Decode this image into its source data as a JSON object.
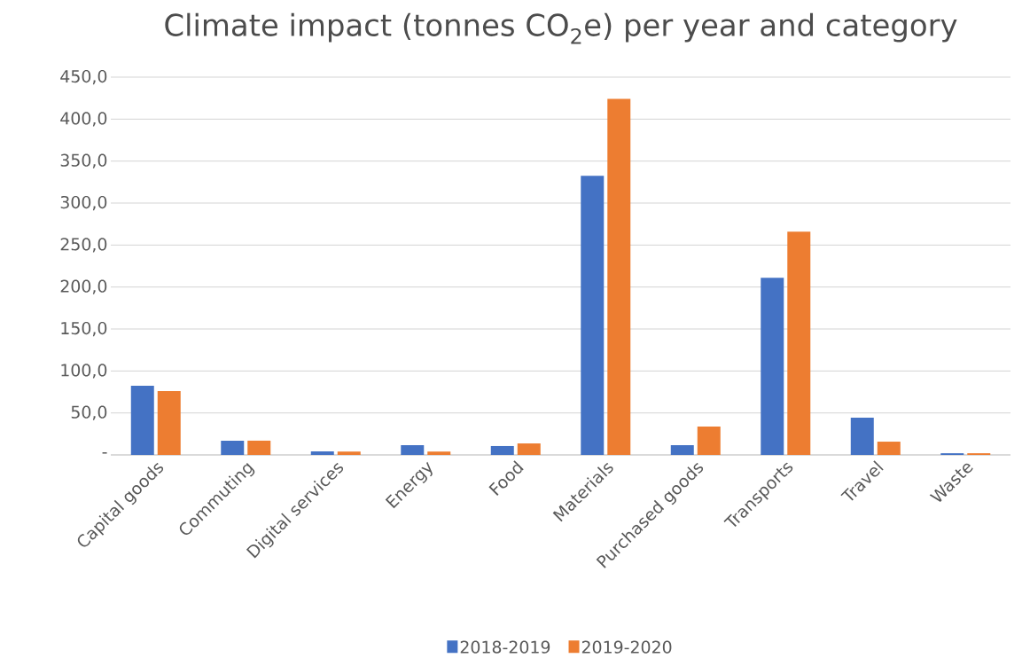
{
  "chart_data": {
    "type": "bar",
    "title": "Climate impact (tonnes CO$_{2}$e) per year and category",
    "categories": [
      "Capital goods",
      "Commuting",
      "Digital services",
      "Energy",
      "Food",
      "Materials",
      "Purchased goods",
      "Transports",
      "Travel",
      "Waste"
    ],
    "series": [
      {
        "name": "2018-2019",
        "color": "#4472c4",
        "values": [
          82.4,
          16.9,
          4.2,
          11.6,
          10.6,
          332.6,
          11.6,
          211.0,
          44.3,
          2.0
        ]
      },
      {
        "name": "2019-2020",
        "color": "#ed7d31",
        "values": [
          76.0,
          17.0,
          4.0,
          4.0,
          13.7,
          424.0,
          33.8,
          266.0,
          15.8,
          2.0
        ]
      }
    ],
    "ylim": [
      0,
      450
    ],
    "yticks": [
      {
        "value": 0,
        "label": "-"
      },
      {
        "value": 50,
        "label": "50,0"
      },
      {
        "value": 100,
        "label": "100,0"
      },
      {
        "value": 150,
        "label": "150,0"
      },
      {
        "value": 200,
        "label": "200,0"
      },
      {
        "value": 250,
        "label": "250,0"
      },
      {
        "value": 300,
        "label": "300,0"
      },
      {
        "value": 350,
        "label": "350,0"
      },
      {
        "value": 400,
        "label": "400,0"
      },
      {
        "value": 450,
        "label": "450,0"
      }
    ],
    "grid": "y",
    "legend": "bottom"
  }
}
